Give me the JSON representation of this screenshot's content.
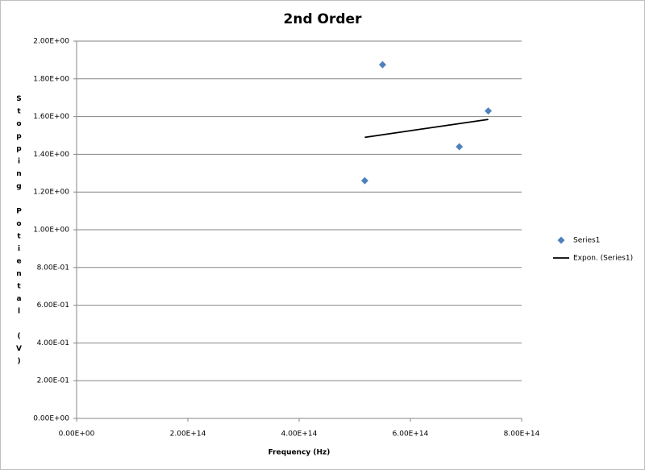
{
  "chart_data": {
    "type": "scatter",
    "title": "2nd Order",
    "x_label": "Frequency (Hz)",
    "y_label": "Stopping Potiental (V)",
    "series": [
      {
        "name": "Series1",
        "color": "#4f81bd",
        "x": [
          518000000000000,
          550000000000000,
          688000000000000,
          740000000000000
        ],
        "values": [
          1.26,
          1.875,
          1.44,
          1.63
        ]
      },
      {
        "name": "Expon. (Series1)",
        "color": "#000000",
        "type": "line",
        "x": [
          518000000000000,
          740000000000000
        ],
        "values": [
          1.49,
          1.585
        ]
      }
    ],
    "xlim": [
      0,
      800000000000000
    ],
    "xticks": [
      {
        "value": 0,
        "label": "0.00E+00"
      },
      {
        "value": 200000000000000,
        "label": "2.00E+14"
      },
      {
        "value": 400000000000000,
        "label": "4.00E+14"
      },
      {
        "value": 600000000000000,
        "label": "6.00E+14"
      },
      {
        "value": 800000000000000,
        "label": "8.00E+14"
      }
    ],
    "ylim": [
      0,
      2
    ],
    "yticks": [
      {
        "value": 0,
        "label": "0.00E+00"
      },
      {
        "value": 0.2,
        "label": "2.00E-01"
      },
      {
        "value": 0.4,
        "label": "4.00E-01"
      },
      {
        "value": 0.6,
        "label": "6.00E-01"
      },
      {
        "value": 0.8,
        "label": "8.00E-01"
      },
      {
        "value": 1,
        "label": "1.00E+00"
      },
      {
        "value": 1.2,
        "label": "1.20E+00"
      },
      {
        "value": 1.4,
        "label": "1.40E+00"
      },
      {
        "value": 1.6,
        "label": "1.60E+00"
      },
      {
        "value": 1.8,
        "label": "1.80E+00"
      },
      {
        "value": 2,
        "label": "2.00E+00"
      }
    ],
    "grid": true,
    "legend": "right"
  }
}
